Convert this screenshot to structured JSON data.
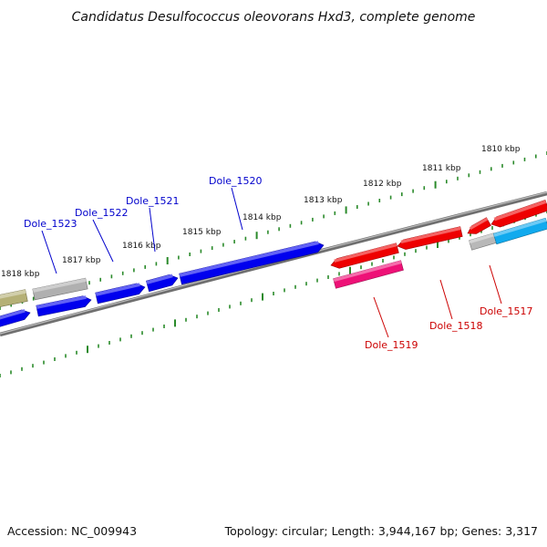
{
  "title": "Candidatus Desulfococcus oleovorans Hxd3, complete genome",
  "footer": {
    "accession": "Accession: NC_009943",
    "summary": "Topology: circular; Length: 3,944,167 bp; Genes: 3,317"
  },
  "scale": {
    "ticks": [
      "1818 kbp",
      "1817 kbp",
      "1816 kbp",
      "1815 kbp",
      "1814 kbp",
      "1813 kbp",
      "1812 kbp",
      "1811 kbp",
      "1810 kbp"
    ]
  },
  "colors": {
    "tick": "#2a8a2a",
    "backbone": "#808080",
    "forward_strand": "#0000ee",
    "reverse_strand": "#ee0000",
    "label_forward": "#0000cc",
    "label_reverse": "#cc0000"
  },
  "labels": {
    "top": [
      "Dole_1523",
      "Dole_1522",
      "Dole_1521",
      "Dole_1520"
    ],
    "bottom": [
      "Dole_1519",
      "Dole_1518",
      "Dole_1517"
    ]
  },
  "genes": [
    {
      "color": "#b5b076"
    },
    {
      "color": "#b0b0b0"
    },
    {
      "color": "#0000ee"
    },
    {
      "color": "#0000ee"
    },
    {
      "color": "#0000ee"
    },
    {
      "color": "#0000ee"
    },
    {
      "color": "#0000ee"
    },
    {
      "color": "#ee0000"
    },
    {
      "color": "#ee1177"
    },
    {
      "color": "#ee0000"
    },
    {
      "color": "#ee0000"
    },
    {
      "color": "#ee0000"
    },
    {
      "color": "#b8b8b8"
    },
    {
      "color": "#11aaee"
    }
  ]
}
